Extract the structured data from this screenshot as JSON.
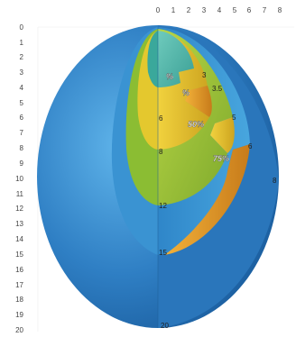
{
  "axes": {
    "top_ticks": [
      "0",
      "1",
      "2",
      "3",
      "4",
      "5",
      "6",
      "7",
      "8"
    ],
    "left_ticks": [
      "0",
      "1",
      "2",
      "3",
      "4",
      "5",
      "6",
      "7",
      "8",
      "9",
      "10",
      "11",
      "12",
      "13",
      "14",
      "15",
      "16",
      "17",
      "18",
      "19",
      "20"
    ]
  },
  "shell_labels": {
    "l3": "3",
    "l35": "3.5",
    "l5": "5",
    "l6": "6",
    "l8": "8",
    "lm6": "6",
    "lm8": "8",
    "lm12": "12",
    "lm15": "15",
    "l20": "20"
  },
  "percent_labels": {
    "p_a": "%",
    "p_b": "%",
    "p50": "50%",
    "p75": "75%"
  },
  "colors": {
    "outer": "#2f7fc4",
    "outer_dark": "#1a5d9e",
    "shell2": "#3d98d6",
    "green": "#9cc43b",
    "yellow": "#e3c12a",
    "orange": "#e09a2a",
    "teal": "#4bb3a7"
  }
}
